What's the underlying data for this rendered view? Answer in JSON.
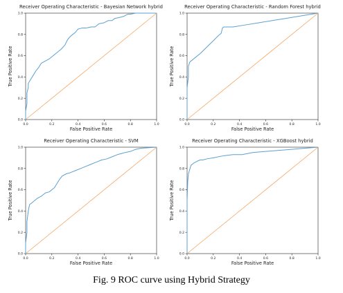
{
  "figure": {
    "caption": "Fig. 9 ROC curve using Hybrid Strategy",
    "colors": {
      "roc": "#5b9fd0",
      "chance": "#f4a35e",
      "axes": "#222222",
      "text": "#222222"
    }
  },
  "chart_data": [
    {
      "type": "line",
      "title": "Receiver Operating Characteristic - Bayesian Network hybrid",
      "xlabel": "False Positive Rate",
      "ylabel": "True Positive Rate",
      "xlim": [
        0,
        1
      ],
      "ylim": [
        0,
        1
      ],
      "xticks": [
        "0.0",
        "0.2",
        "0.4",
        "0.6",
        "0.8",
        "1.0"
      ],
      "yticks": [
        "0.0",
        "0.2",
        "0.4",
        "0.6",
        "0.8",
        "1.0"
      ],
      "grid": false,
      "series": [
        {
          "x": [
            0.0,
            0.0,
            0.01,
            0.01,
            0.02,
            0.02,
            0.04,
            0.06,
            0.08,
            0.1,
            0.12,
            0.15,
            0.18,
            0.21,
            0.24,
            0.27,
            0.3,
            0.32,
            0.34,
            0.36,
            0.38,
            0.4,
            0.43,
            0.46,
            0.5,
            0.53,
            0.56,
            0.6,
            0.63,
            0.66,
            0.68,
            0.72,
            0.75,
            0.78,
            0.8,
            0.84,
            1.0
          ],
          "y": [
            0.0,
            0.08,
            0.15,
            0.25,
            0.3,
            0.34,
            0.38,
            0.42,
            0.46,
            0.49,
            0.53,
            0.55,
            0.57,
            0.6,
            0.63,
            0.66,
            0.7,
            0.75,
            0.78,
            0.8,
            0.82,
            0.85,
            0.86,
            0.86,
            0.87,
            0.87,
            0.9,
            0.91,
            0.93,
            0.93,
            0.95,
            0.96,
            0.97,
            0.99,
            0.99,
            1.0,
            1.0
          ]
        },
        {
          "x": [
            0.0,
            1.0
          ],
          "y": [
            0.0,
            1.0
          ]
        }
      ]
    },
    {
      "type": "line",
      "title": "Receiver Operating Characteristic - Random Forest hybrid",
      "xlabel": "False Positive Rate",
      "ylabel": "True Positive Rate",
      "xlim": [
        0,
        1
      ],
      "ylim": [
        0,
        1
      ],
      "xticks": [
        "0.0",
        "0.2",
        "0.4",
        "0.6",
        "0.8",
        "1.0"
      ],
      "yticks": [
        "0.0",
        "0.2",
        "0.4",
        "0.6",
        "0.8",
        "1.0"
      ],
      "grid": false,
      "series": [
        {
          "x": [
            0.0,
            0.0,
            0.01,
            0.01,
            0.02,
            0.03,
            0.06,
            0.1,
            0.15,
            0.2,
            0.24,
            0.26,
            0.27,
            0.28,
            0.35,
            0.45,
            0.55,
            0.65,
            0.75,
            0.85,
            0.95,
            1.0
          ],
          "y": [
            0.0,
            0.3,
            0.4,
            0.5,
            0.54,
            0.55,
            0.58,
            0.62,
            0.68,
            0.74,
            0.79,
            0.81,
            0.86,
            0.87,
            0.87,
            0.89,
            0.91,
            0.93,
            0.95,
            0.97,
            0.99,
            1.0
          ]
        },
        {
          "x": [
            0.0,
            1.0
          ],
          "y": [
            0.0,
            1.0
          ]
        }
      ]
    },
    {
      "type": "line",
      "title": "Receiver Operating Characteristic - SVM",
      "xlabel": "False Positive Rate",
      "ylabel": "True Positive Rate",
      "xlim": [
        0,
        1
      ],
      "ylim": [
        0,
        1
      ],
      "xticks": [
        "0.0",
        "0.2",
        "0.4",
        "0.6",
        "0.8",
        "1.0"
      ],
      "yticks": [
        "0.0",
        "0.2",
        "0.4",
        "0.6",
        "0.8",
        "1.0"
      ],
      "grid": false,
      "series": [
        {
          "x": [
            0.0,
            0.0,
            0.01,
            0.01,
            0.02,
            0.03,
            0.05,
            0.07,
            0.09,
            0.12,
            0.15,
            0.18,
            0.2,
            0.22,
            0.24,
            0.26,
            0.28,
            0.31,
            0.34,
            0.38,
            0.42,
            0.46,
            0.5,
            0.54,
            0.58,
            0.62,
            0.66,
            0.7,
            0.73,
            0.76,
            0.8,
            0.84,
            0.88,
            1.0
          ],
          "y": [
            0.0,
            0.1,
            0.2,
            0.3,
            0.4,
            0.46,
            0.48,
            0.5,
            0.52,
            0.54,
            0.57,
            0.58,
            0.6,
            0.62,
            0.66,
            0.7,
            0.73,
            0.75,
            0.76,
            0.78,
            0.8,
            0.82,
            0.84,
            0.86,
            0.88,
            0.89,
            0.91,
            0.93,
            0.94,
            0.95,
            0.96,
            0.98,
            0.99,
            1.0
          ]
        },
        {
          "x": [
            0.0,
            1.0
          ],
          "y": [
            0.0,
            1.0
          ]
        }
      ]
    },
    {
      "type": "line",
      "title": "Receiver Operating Characteristic - XGBoost hybrid",
      "xlabel": "False Positive Rate",
      "ylabel": "True Positive Rate",
      "xlim": [
        0,
        1
      ],
      "ylim": [
        0,
        1
      ],
      "xticks": [
        "0.0",
        "0.2",
        "0.4",
        "0.6",
        "0.8",
        "1.0"
      ],
      "yticks": [
        "0.0",
        "0.2",
        "0.4",
        "0.6",
        "0.8",
        "1.0"
      ],
      "grid": false,
      "series": [
        {
          "x": [
            0.0,
            0.0,
            0.005,
            0.01,
            0.02,
            0.03,
            0.05,
            0.08,
            0.1,
            0.12,
            0.15,
            0.2,
            0.28,
            0.35,
            0.42,
            0.5,
            0.6,
            0.7,
            0.8,
            0.9,
            1.0
          ],
          "y": [
            0.0,
            0.5,
            0.68,
            0.75,
            0.79,
            0.83,
            0.85,
            0.87,
            0.88,
            0.88,
            0.89,
            0.9,
            0.92,
            0.93,
            0.93,
            0.95,
            0.96,
            0.97,
            0.98,
            0.99,
            1.0
          ]
        },
        {
          "x": [
            0.0,
            1.0
          ],
          "y": [
            0.0,
            1.0
          ]
        }
      ]
    }
  ]
}
